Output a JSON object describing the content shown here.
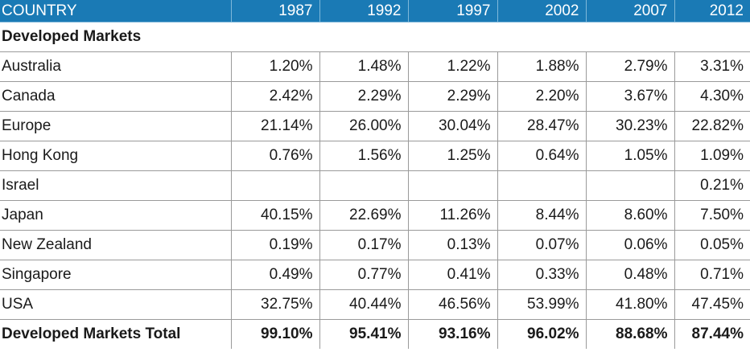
{
  "colors": {
    "header_bg": "#1a7ab5",
    "header_text": "#ffffff",
    "grid": "#9a9a9a"
  },
  "table": {
    "header": [
      "COUNTRY",
      "1987",
      "1992",
      "1997",
      "2002",
      "2007",
      "2012"
    ],
    "section_title": "Developed Markets",
    "rows": [
      {
        "country": "Australia",
        "values": [
          "1.20%",
          "1.48%",
          "1.22%",
          "1.88%",
          "2.79%",
          "3.31%"
        ]
      },
      {
        "country": "Canada",
        "values": [
          "2.42%",
          "2.29%",
          "2.29%",
          "2.20%",
          "3.67%",
          "4.30%"
        ]
      },
      {
        "country": "Europe",
        "values": [
          "21.14%",
          "26.00%",
          "30.04%",
          "28.47%",
          "30.23%",
          "22.82%"
        ]
      },
      {
        "country": "Hong Kong",
        "values": [
          "0.76%",
          "1.56%",
          "1.25%",
          "0.64%",
          "1.05%",
          "1.09%"
        ]
      },
      {
        "country": "Israel",
        "values": [
          "",
          "",
          "",
          "",
          "",
          "0.21%"
        ]
      },
      {
        "country": "Japan",
        "values": [
          "40.15%",
          "22.69%",
          "11.26%",
          "8.44%",
          "8.60%",
          "7.50%"
        ]
      },
      {
        "country": "New Zealand",
        "values": [
          "0.19%",
          "0.17%",
          "0.13%",
          "0.07%",
          "0.06%",
          "0.05%"
        ]
      },
      {
        "country": "Singapore",
        "values": [
          "0.49%",
          "0.77%",
          "0.41%",
          "0.33%",
          "0.48%",
          "0.71%"
        ]
      },
      {
        "country": "USA",
        "values": [
          "32.75%",
          "40.44%",
          "46.56%",
          "53.99%",
          "41.80%",
          "47.45%"
        ]
      }
    ],
    "total": {
      "country": "Developed Markets Total",
      "values": [
        "99.10%",
        "95.41%",
        "93.16%",
        "96.02%",
        "88.68%",
        "87.44%"
      ]
    }
  }
}
